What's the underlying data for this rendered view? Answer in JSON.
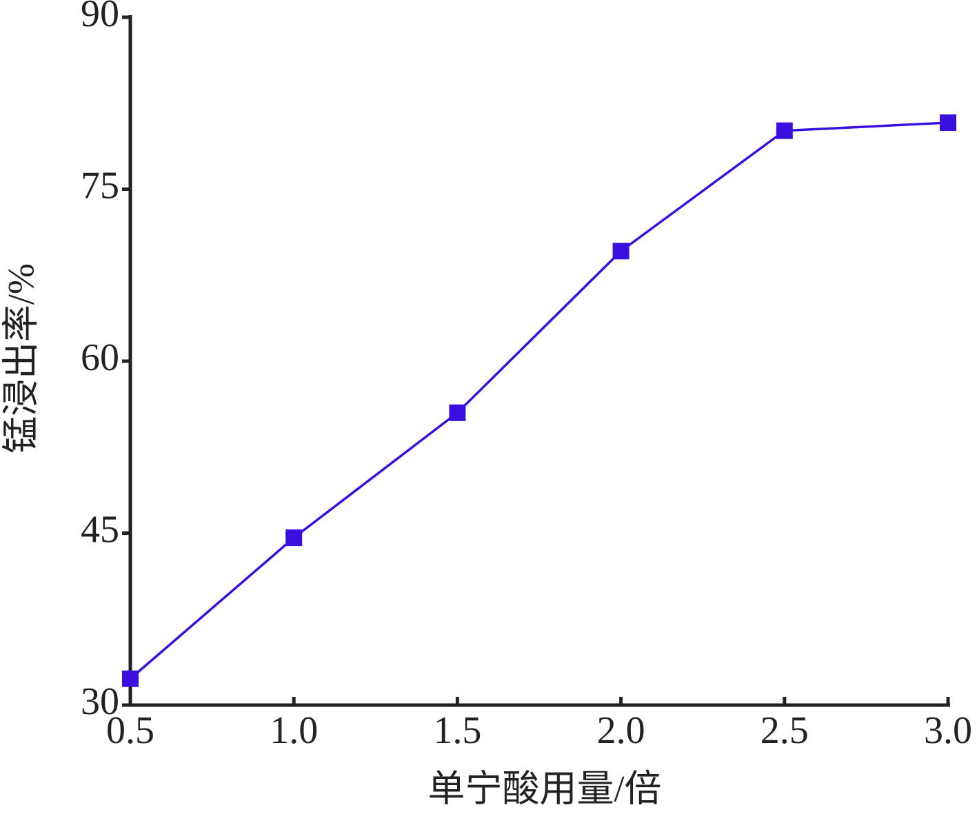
{
  "chart_data": {
    "type": "line",
    "x_label": "单宁酸用量/倍",
    "y_label": "锰浸出率/%",
    "x": [
      0.5,
      1.0,
      1.5,
      2.0,
      2.5,
      3.0
    ],
    "values": [
      32.3,
      44.6,
      55.5,
      69.6,
      80.1,
      80.8
    ],
    "color": "#3a10e0",
    "xlim": [
      0.5,
      3.0
    ],
    "xticks": [
      0.5,
      {
        "value": 1,
        "label": "1.0"
      },
      1.5,
      {
        "value": 2,
        "label": "2.0"
      },
      2.5,
      {
        "value": 3,
        "label": "3.0"
      }
    ],
    "ylim": [
      30,
      90
    ],
    "yticks": [
      30,
      45,
      60,
      75,
      90
    ],
    "grid": false
  }
}
